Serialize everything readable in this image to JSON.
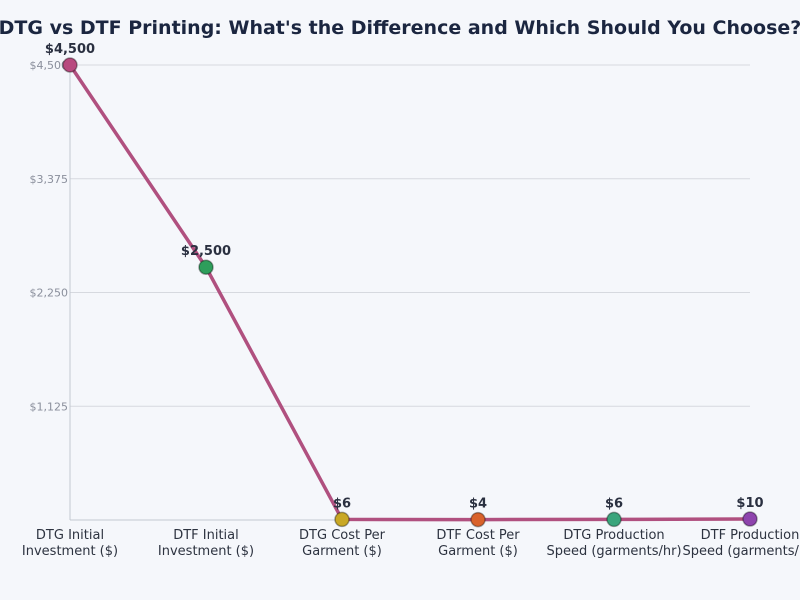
{
  "chart_data": {
    "type": "line",
    "title": "DTG vs DTF Printing: What's the Difference and Which Should You Choose?",
    "categories": [
      [
        "DTG Initial",
        "Investment ($)"
      ],
      [
        "DTF Initial",
        "Investment ($)"
      ],
      [
        "DTG Cost Per",
        "Garment ($)"
      ],
      [
        "DTF Cost Per",
        "Garment ($)"
      ],
      [
        "DTG Production",
        "Speed (garments/hr)"
      ],
      [
        "DTF Production",
        "Speed (garments/hr)"
      ]
    ],
    "values": [
      4500,
      2500,
      6,
      4,
      6,
      10
    ],
    "data_labels": [
      "$4,500",
      "$2,500",
      "$6",
      "$4",
      "$6",
      "$10"
    ],
    "ylim": [
      0,
      4500
    ],
    "yticks": [
      1125,
      2250,
      3375,
      4500
    ],
    "ytick_labels": [
      "$1,125",
      "$2,250",
      "$3,375",
      "$4,500"
    ],
    "grid": true,
    "xlabel": "",
    "ylabel": "",
    "line_color": "#b0507f",
    "point_colors": [
      "#b84a7f",
      "#2e9e5b",
      "#c9a825",
      "#d9622b",
      "#3aa57c",
      "#8e44ad"
    ]
  }
}
